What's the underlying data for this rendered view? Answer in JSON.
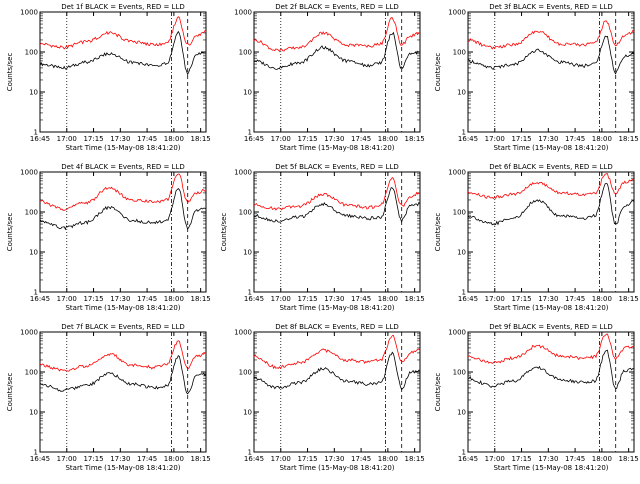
{
  "figure": {
    "start_time_label": "Start Time (15-May-08 18:41:20)",
    "ylabel": "Counts/sec",
    "colors": {
      "events": "#000000",
      "lld": "#ff0000",
      "axis": "#000000"
    }
  },
  "chart_data": [
    {
      "type": "line",
      "title": "Det 1f BLACK = Events, RED = LLD",
      "xlabel": "Start Time (15-May-08 18:41:20)",
      "ylabel": "Counts/sec",
      "y_scale": "log",
      "ylim": [
        1,
        1000
      ],
      "x_ticks": [
        "16:45",
        "17:00",
        "17:15",
        "17:30",
        "17:45",
        "18:00",
        "18:15"
      ],
      "y_ticks": [
        "1",
        "10",
        "100",
        "1000"
      ],
      "series": [
        {
          "name": "Events",
          "x": [
            0,
            10,
            20,
            30,
            40,
            50,
            55,
            60,
            64,
            68,
            72
          ],
          "y": [
            50,
            40,
            55,
            90,
            55,
            45,
            50,
            300,
            30,
            90,
            100
          ]
        },
        {
          "name": "LLD",
          "x": [
            0,
            10,
            20,
            30,
            40,
            50,
            55,
            60,
            64,
            68,
            72
          ],
          "y": [
            160,
            130,
            180,
            300,
            180,
            150,
            160,
            700,
            150,
            250,
            350
          ]
        }
      ]
    },
    {
      "type": "line",
      "title": "Det 2f BLACK = Events, RED = LLD",
      "xlabel": "Start Time (15-May-08 18:41:20)",
      "ylabel": "",
      "y_scale": "log",
      "ylim": [
        1,
        1000
      ],
      "x_ticks": [
        "16:45",
        "17:00",
        "17:15",
        "17:30",
        "17:45",
        "18:00",
        "18:15"
      ],
      "y_ticks": [
        "1",
        "10",
        "100",
        "1000"
      ],
      "series": [
        {
          "name": "Events",
          "x": [
            0,
            10,
            20,
            30,
            40,
            50,
            55,
            60,
            64,
            68,
            72
          ],
          "y": [
            60,
            40,
            55,
            130,
            60,
            45,
            55,
            300,
            40,
            90,
            100
          ]
        },
        {
          "name": "LLD",
          "x": [
            0,
            10,
            20,
            30,
            40,
            50,
            55,
            60,
            64,
            68,
            72
          ],
          "y": [
            200,
            110,
            130,
            300,
            150,
            140,
            160,
            700,
            150,
            250,
            300
          ]
        }
      ]
    },
    {
      "type": "line",
      "title": "Det 3f BLACK = Events, RED = LLD",
      "xlabel": "Start Time (15-May-08 18:41:20)",
      "ylabel": "Counts/sec",
      "y_scale": "log",
      "ylim": [
        1,
        1000
      ],
      "x_ticks": [
        "16:45",
        "17:00",
        "17:15",
        "17:30",
        "17:45",
        "18:00",
        "18:15"
      ],
      "y_ticks": [
        "1",
        "10",
        "100",
        "1000"
      ],
      "series": [
        {
          "name": "Events",
          "x": [
            0,
            10,
            20,
            30,
            40,
            50,
            55,
            60,
            64,
            68,
            72
          ],
          "y": [
            60,
            40,
            50,
            110,
            55,
            45,
            50,
            250,
            30,
            80,
            90
          ]
        },
        {
          "name": "LLD",
          "x": [
            0,
            10,
            20,
            30,
            40,
            50,
            55,
            60,
            64,
            68,
            72
          ],
          "y": [
            200,
            130,
            150,
            330,
            160,
            150,
            170,
            600,
            150,
            250,
            320
          ]
        }
      ]
    },
    {
      "type": "line",
      "title": "Det 4f BLACK = Events, RED = LLD",
      "xlabel": "Start Time (15-May-08 18:41:20)",
      "ylabel": "Counts/sec",
      "y_scale": "log",
      "ylim": [
        1,
        1000
      ],
      "x_ticks": [
        "16:45",
        "17:00",
        "17:15",
        "17:30",
        "17:45",
        "18:00",
        "18:15"
      ],
      "y_ticks": [
        "1",
        "10",
        "100",
        "1000"
      ],
      "series": [
        {
          "name": "Events",
          "x": [
            0,
            10,
            20,
            30,
            40,
            50,
            55,
            60,
            64,
            68,
            72
          ],
          "y": [
            60,
            40,
            55,
            130,
            60,
            55,
            60,
            400,
            40,
            110,
            120
          ]
        },
        {
          "name": "LLD",
          "x": [
            0,
            10,
            20,
            30,
            40,
            50,
            55,
            60,
            64,
            68,
            72
          ],
          "y": [
            180,
            120,
            170,
            400,
            200,
            180,
            200,
            900,
            180,
            300,
            350
          ]
        }
      ]
    },
    {
      "type": "line",
      "title": "Det 5f BLACK = Events, RED = LLD",
      "xlabel": "Start Time (15-May-08 18:41:20)",
      "ylabel": "Counts/sec",
      "y_scale": "log",
      "ylim": [
        1,
        1000
      ],
      "x_ticks": [
        "16:45",
        "17:00",
        "17:15",
        "17:30",
        "17:45",
        "18:00",
        "18:15"
      ],
      "y_ticks": [
        "1",
        "10",
        "100",
        "1000"
      ],
      "series": [
        {
          "name": "Events",
          "x": [
            0,
            10,
            20,
            30,
            40,
            50,
            55,
            60,
            64,
            68,
            72
          ],
          "y": [
            80,
            60,
            75,
            160,
            80,
            70,
            75,
            400,
            60,
            150,
            160
          ]
        },
        {
          "name": "LLD",
          "x": [
            0,
            10,
            20,
            30,
            40,
            50,
            55,
            60,
            64,
            68,
            72
          ],
          "y": [
            150,
            120,
            140,
            280,
            150,
            130,
            150,
            700,
            140,
            250,
            300
          ]
        }
      ]
    },
    {
      "type": "line",
      "title": "Det 6f BLACK = Events, RED = LLD",
      "xlabel": "Start Time (15-May-08 18:41:20)",
      "ylabel": "Counts/sec",
      "y_scale": "log",
      "ylim": [
        1,
        1000
      ],
      "x_ticks": [
        "16:45",
        "17:00",
        "17:15",
        "17:30",
        "17:45",
        "18:00",
        "18:15"
      ],
      "y_ticks": [
        "1",
        "10",
        "100",
        "1000"
      ],
      "series": [
        {
          "name": "Events",
          "x": [
            0,
            10,
            20,
            30,
            40,
            50,
            55,
            60,
            64,
            68,
            72
          ],
          "y": [
            80,
            50,
            70,
            200,
            80,
            70,
            80,
            500,
            50,
            150,
            180
          ]
        },
        {
          "name": "LLD",
          "x": [
            0,
            10,
            20,
            30,
            40,
            50,
            55,
            60,
            64,
            68,
            72
          ],
          "y": [
            300,
            230,
            280,
            550,
            300,
            280,
            300,
            900,
            300,
            550,
            600
          ]
        }
      ]
    },
    {
      "type": "line",
      "title": "Det 7f BLACK = Events, RED = LLD",
      "xlabel": "Start Time (15-May-08 18:41:20)",
      "ylabel": "Counts/sec",
      "y_scale": "log",
      "ylim": [
        1,
        1000
      ],
      "x_ticks": [
        "16:45",
        "17:00",
        "17:15",
        "17:30",
        "17:45",
        "18:00",
        "18:15"
      ],
      "y_ticks": [
        "1",
        "10",
        "100",
        "1000"
      ],
      "series": [
        {
          "name": "Events",
          "x": [
            0,
            10,
            20,
            30,
            40,
            50,
            55,
            60,
            64,
            68,
            72
          ],
          "y": [
            50,
            35,
            45,
            90,
            50,
            40,
            45,
            250,
            30,
            80,
            90
          ]
        },
        {
          "name": "LLD",
          "x": [
            0,
            10,
            20,
            30,
            40,
            50,
            55,
            60,
            64,
            68,
            72
          ],
          "y": [
            150,
            110,
            140,
            280,
            150,
            130,
            150,
            600,
            130,
            250,
            300
          ]
        }
      ]
    },
    {
      "type": "line",
      "title": "Det 8f BLACK = Events, RED = LLD",
      "xlabel": "Start Time (15-May-08 18:41:20)",
      "ylabel": "",
      "y_scale": "log",
      "ylim": [
        1,
        1000
      ],
      "x_ticks": [
        "16:45",
        "17:00",
        "17:15",
        "17:30",
        "17:45",
        "18:00",
        "18:15"
      ],
      "y_ticks": [
        "1",
        "10",
        "100",
        "1000"
      ],
      "series": [
        {
          "name": "Events",
          "x": [
            0,
            10,
            20,
            30,
            40,
            50,
            55,
            60,
            64,
            68,
            72
          ],
          "y": [
            70,
            40,
            55,
            120,
            60,
            50,
            55,
            300,
            40,
            100,
            110
          ]
        },
        {
          "name": "LLD",
          "x": [
            0,
            10,
            20,
            30,
            40,
            50,
            55,
            60,
            64,
            68,
            72
          ],
          "y": [
            250,
            130,
            170,
            350,
            200,
            180,
            200,
            800,
            180,
            300,
            350
          ]
        }
      ]
    },
    {
      "type": "line",
      "title": "Det 9f BLACK = Events, RED = LLD",
      "xlabel": "Start Time (15-May-08 18:41:20)",
      "ylabel": "Counts/sec",
      "y_scale": "log",
      "ylim": [
        1,
        1000
      ],
      "x_ticks": [
        "16:45",
        "17:00",
        "17:15",
        "17:30",
        "17:45",
        "18:00",
        "18:15"
      ],
      "y_ticks": [
        "1",
        "10",
        "100",
        "1000"
      ],
      "series": [
        {
          "name": "Events",
          "x": [
            0,
            10,
            20,
            30,
            40,
            50,
            55,
            60,
            64,
            68,
            72
          ],
          "y": [
            70,
            45,
            60,
            130,
            65,
            55,
            60,
            350,
            40,
            110,
            120
          ]
        },
        {
          "name": "LLD",
          "x": [
            0,
            10,
            20,
            30,
            40,
            50,
            55,
            60,
            64,
            68,
            72
          ],
          "y": [
            250,
            170,
            220,
            450,
            250,
            220,
            240,
            900,
            220,
            400,
            450
          ]
        }
      ]
    }
  ]
}
